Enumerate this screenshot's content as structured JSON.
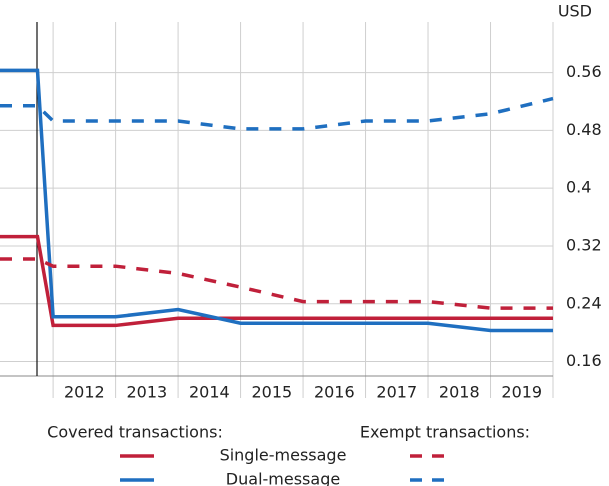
{
  "chart_data": {
    "type": "line",
    "y_label": "USD",
    "xlim": [
      2011.15,
      2020
    ],
    "xticks": [
      2012,
      2013,
      2014,
      2015,
      2016,
      2017,
      2018,
      2019
    ],
    "ylim": [
      0.14,
      0.63
    ],
    "yticks": [
      0.16,
      0.24,
      0.32,
      0.4,
      0.48,
      0.56
    ],
    "grid": true,
    "legend": {
      "columns": [
        "Covered transactions:",
        "Exempt transactions:"
      ]
    },
    "series": [
      {
        "name": "Single-message",
        "color": "#c0203a",
        "dashed": false,
        "x": [
          2011.15,
          2011.75,
          2012,
          2013,
          2014,
          2020
        ],
        "values": [
          0.333,
          0.333,
          0.21,
          0.21,
          0.22,
          0.22
        ]
      },
      {
        "name": "Dual-message",
        "color": "#1f6fc0",
        "dashed": false,
        "x": [
          2011.15,
          2011.75,
          2012,
          2013,
          2014,
          2015,
          2018,
          2019,
          2020
        ],
        "values": [
          0.563,
          0.563,
          0.222,
          0.222,
          0.232,
          0.213,
          0.213,
          0.203,
          0.203
        ]
      },
      {
        "color": "#c0203a",
        "dashed": true,
        "x": [
          2011.15,
          2011.75,
          2012,
          2013,
          2014,
          2015,
          2016,
          2018,
          2019,
          2020
        ],
        "values": [
          0.302,
          0.302,
          0.292,
          0.292,
          0.282,
          0.263,
          0.243,
          0.243,
          0.234,
          0.234
        ]
      },
      {
        "color": "#1f6fc0",
        "dashed": true,
        "x": [
          2011.15,
          2011.75,
          2012,
          2014,
          2015,
          2016,
          2017,
          2018,
          2019,
          2020
        ],
        "values": [
          0.514,
          0.514,
          0.493,
          0.493,
          0.482,
          0.482,
          0.493,
          0.493,
          0.503,
          0.524
        ]
      }
    ]
  }
}
